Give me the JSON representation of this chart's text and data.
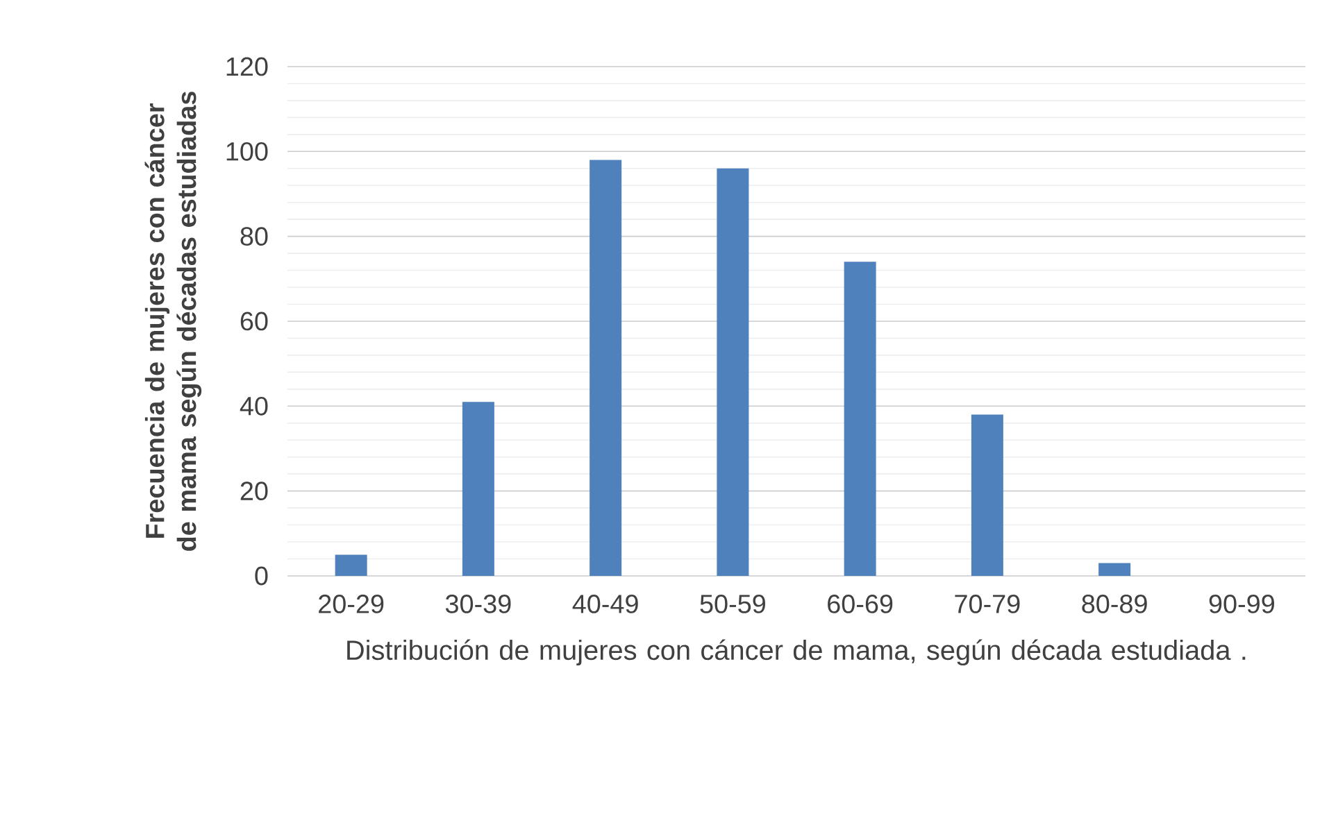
{
  "chart_data": {
    "type": "bar",
    "xlabel": "Distribución de mujeres con cáncer de mama, según década estudiada .",
    "ylabel": "Frecuencia de mujeres con cáncer de mama según décadas estudiadas",
    "categories": [
      "20-29",
      "30-39",
      "40-49",
      "50-59",
      "60-69",
      "70-79",
      "80-89",
      "90-99"
    ],
    "values": [
      5,
      41,
      98,
      96,
      74,
      38,
      3,
      0
    ],
    "color": "#4f81bd",
    "ylim": [
      0,
      120
    ],
    "yticks": [
      0,
      20,
      40,
      60,
      80,
      100,
      120
    ],
    "grid": "y"
  }
}
